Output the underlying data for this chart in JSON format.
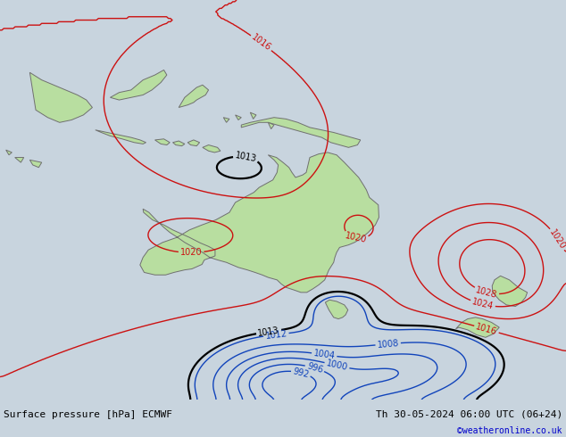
{
  "title_left": "Surface pressure [hPa] ECMWF",
  "title_right": "Th 30-05-2024 06:00 UTC (06+24)",
  "copyright": "©weatheronline.co.uk",
  "bg_color": "#c8d4de",
  "land_color": "#b8dea0",
  "ocean_color": "#c8d4de",
  "figsize": [
    6.34,
    4.9
  ],
  "dpi": 100,
  "label_fontsize": 8,
  "copyright_color": "#0000cc",
  "lon0": 90,
  "lon1": 185,
  "lat0": -60,
  "lat1": 20
}
